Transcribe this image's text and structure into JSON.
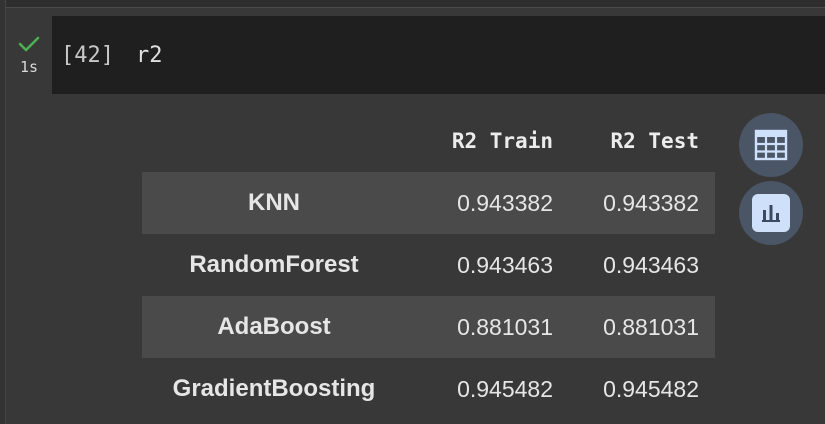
{
  "cell": {
    "exec_time": "1s",
    "exec_count": "[42]",
    "code": "r2"
  },
  "table": {
    "columns": [
      "R2 Train",
      "R2 Test"
    ],
    "rows": [
      {
        "index": "KNN",
        "r2_train": "0.943382",
        "r2_test": "0.943382"
      },
      {
        "index": "RandomForest",
        "r2_train": "0.943463",
        "r2_test": "0.943463"
      },
      {
        "index": "AdaBoost",
        "r2_train": "0.881031",
        "r2_test": "0.881031"
      },
      {
        "index": "GradientBoosting",
        "r2_train": "0.945482",
        "r2_test": "0.945482"
      }
    ]
  },
  "icons": {
    "status": "check-icon",
    "table_button": "table-icon",
    "chart_button": "bar-chart-icon"
  },
  "colors": {
    "background": "#383838",
    "code_cell": "#1f1f1f",
    "row_shade": "#4a4a4a",
    "button_bg": "#4a5566",
    "check": "#4caf50"
  }
}
